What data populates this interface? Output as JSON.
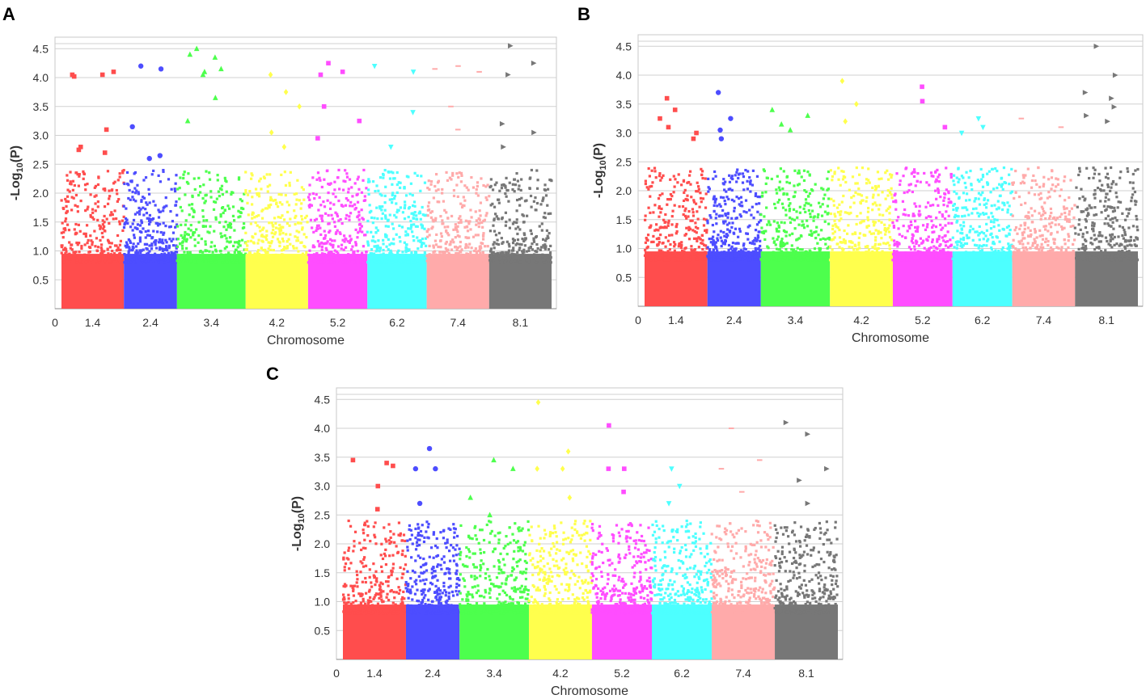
{
  "colors": {
    "chromosome_palette": [
      "#ff4d4d",
      "#4d4dff",
      "#4dff4d",
      "#ffff4d",
      "#ff4dff",
      "#4dffff",
      "#ffaaaa",
      "#777777"
    ],
    "grid": "#d0d0d0",
    "axis": "#888888",
    "text": "#333333"
  },
  "chart_data": [
    {
      "panel": "A",
      "type": "scatter",
      "subtype": "manhattan",
      "xlabel": "Chromosome",
      "ylabel_prefix": "-Log",
      "ylabel_sub": "10",
      "ylabel_suffix": "(P)",
      "ylim": [
        0,
        4.7
      ],
      "y_ticks": [
        "0.5",
        "1.0",
        "1.5",
        "2.0",
        "2.5",
        "3.0",
        "3.5",
        "4.0",
        "4.5"
      ],
      "x_origin_label": "0",
      "chromosomes": [
        {
          "label": "1.4",
          "top_hits": [
            4.05,
            4.05,
            4.1,
            4.02,
            3.1,
            2.75,
            2.8,
            2.7
          ]
        },
        {
          "label": "2.4",
          "top_hits": [
            4.2,
            4.15,
            3.15,
            2.6,
            2.65
          ]
        },
        {
          "label": "3.4",
          "top_hits": [
            4.5,
            4.35,
            4.4,
            4.1,
            4.15,
            4.05,
            3.65,
            3.25
          ]
        },
        {
          "label": "4.2",
          "top_hits": [
            4.05,
            3.75,
            3.5,
            3.05,
            2.8
          ]
        },
        {
          "label": "5.2",
          "top_hits": [
            4.25,
            4.1,
            4.05,
            3.5,
            3.25,
            2.95
          ]
        },
        {
          "label": "6.2",
          "top_hits": [
            4.2,
            4.1,
            3.4,
            2.8
          ]
        },
        {
          "label": "7.4",
          "top_hits": [
            4.15,
            4.2,
            4.1,
            3.5,
            3.1
          ]
        },
        {
          "label": "8.1",
          "top_hits": [
            4.55,
            4.25,
            4.05,
            3.2,
            3.05,
            2.8
          ]
        }
      ]
    },
    {
      "panel": "B",
      "type": "scatter",
      "subtype": "manhattan",
      "xlabel": "Chromosome",
      "ylabel_prefix": "-Log",
      "ylabel_sub": "10",
      "ylabel_suffix": "(P)",
      "ylim": [
        0,
        4.7
      ],
      "y_ticks": [
        "0.5",
        "1.0",
        "1.5",
        "2.0",
        "2.5",
        "3.0",
        "3.5",
        "4.0",
        "4.5"
      ],
      "x_origin_label": "0",
      "chromosomes": [
        {
          "label": "1.4",
          "top_hits": [
            3.6,
            3.4,
            3.25,
            3.1,
            3.0,
            2.9
          ]
        },
        {
          "label": "2.4",
          "top_hits": [
            3.7,
            3.25,
            3.05,
            2.9
          ]
        },
        {
          "label": "3.4",
          "top_hits": [
            3.4,
            3.3,
            3.15,
            3.05
          ]
        },
        {
          "label": "4.2",
          "top_hits": [
            3.9,
            3.5,
            3.2
          ]
        },
        {
          "label": "5.2",
          "top_hits": [
            3.8,
            3.55,
            3.1
          ]
        },
        {
          "label": "6.2",
          "top_hits": [
            3.25,
            3.1,
            3.0
          ]
        },
        {
          "label": "7.4",
          "top_hits": [
            3.25,
            3.1
          ]
        },
        {
          "label": "8.1",
          "top_hits": [
            4.5,
            4.0,
            3.7,
            3.6,
            3.45,
            3.3,
            3.2
          ]
        }
      ]
    },
    {
      "panel": "C",
      "type": "scatter",
      "subtype": "manhattan",
      "xlabel": "Chromosome",
      "ylabel_prefix": "-Log",
      "ylabel_sub": "10",
      "ylabel_suffix": "(P)",
      "ylim": [
        0,
        4.7
      ],
      "y_ticks": [
        "0.5",
        "1.0",
        "1.5",
        "2.0",
        "2.5",
        "3.0",
        "3.5",
        "4.0",
        "4.5"
      ],
      "x_origin_label": "0",
      "chromosomes": [
        {
          "label": "1.4",
          "top_hits": [
            3.45,
            3.4,
            3.35,
            3.0,
            2.6
          ]
        },
        {
          "label": "2.4",
          "top_hits": [
            3.65,
            3.3,
            3.3,
            2.7
          ]
        },
        {
          "label": "3.4",
          "top_hits": [
            3.45,
            3.3,
            2.8,
            2.5
          ]
        },
        {
          "label": "4.2",
          "top_hits": [
            4.45,
            3.6,
            3.3,
            3.3,
            2.8
          ]
        },
        {
          "label": "5.2",
          "top_hits": [
            4.05,
            3.3,
            3.3,
            2.9
          ]
        },
        {
          "label": "6.2",
          "top_hits": [
            3.3,
            3.0,
            2.7
          ]
        },
        {
          "label": "7.4",
          "top_hits": [
            4.0,
            3.45,
            3.3,
            2.9
          ]
        },
        {
          "label": "8.1",
          "top_hits": [
            4.1,
            3.9,
            3.3,
            3.1,
            2.7
          ]
        }
      ]
    }
  ]
}
